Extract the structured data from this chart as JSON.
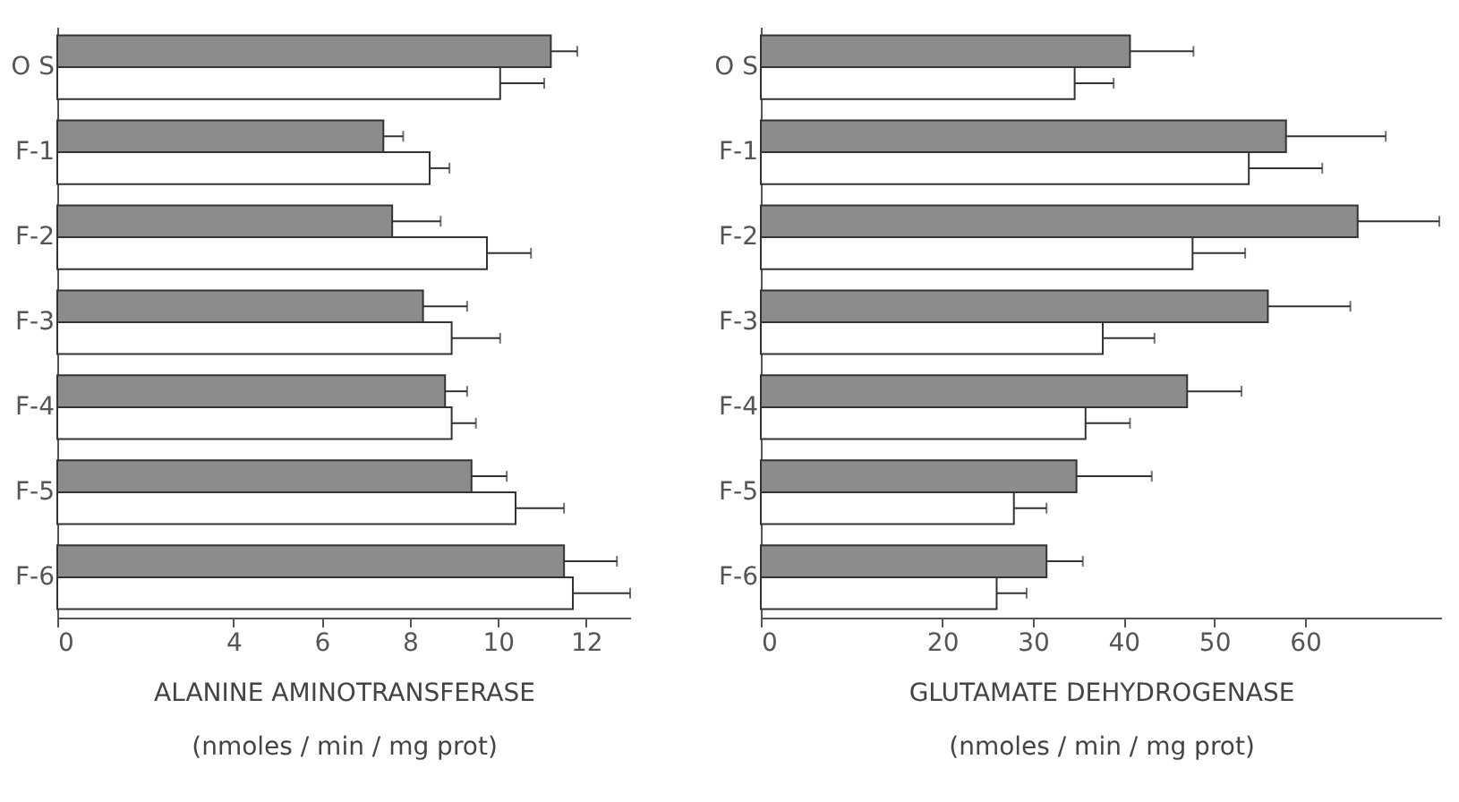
{
  "chart_data": [
    {
      "type": "bar",
      "orientation": "horizontal",
      "categories": [
        "O S",
        "F-1",
        "F-2",
        "F-3",
        "F-4",
        "F-5",
        "F-6"
      ],
      "xlabel": "ALANINE AMINOTRANSFERASE\n(nmoles / min / mg prot)",
      "xlim": [
        0,
        13
      ],
      "xticks": [
        0,
        4,
        6,
        8,
        10,
        12
      ],
      "grid": false,
      "series": [
        {
          "color": "#8c8c8c",
          "values": [
            11.2,
            7.4,
            7.6,
            8.3,
            8.8,
            9.4,
            11.5
          ],
          "errors": [
            [
              11.2,
              11.8
            ],
            [
              7.4,
              7.85
            ],
            [
              7.6,
              8.7
            ],
            [
              8.3,
              9.3
            ],
            [
              8.8,
              9.3
            ],
            [
              9.4,
              10.2
            ],
            [
              11.5,
              12.7
            ]
          ]
        },
        {
          "color": "#ffffff",
          "values": [
            10.05,
            8.45,
            9.75,
            8.95,
            8.95,
            10.4,
            11.7
          ],
          "errors": [
            [
              10.05,
              11.05
            ],
            [
              8.45,
              8.9
            ],
            [
              9.75,
              10.75
            ],
            [
              8.95,
              10.05
            ],
            [
              8.95,
              9.5
            ],
            [
              10.4,
              11.5
            ],
            [
              11.7,
              13
            ]
          ]
        }
      ]
    },
    {
      "type": "bar",
      "orientation": "horizontal",
      "categories": [
        "O S",
        "F-1",
        "F-2",
        "F-3",
        "F-4",
        "F-5",
        "F-6"
      ],
      "xlabel": "GLUTAMATE DEHYDROGENASE\n(nmoles / min / mg prot)",
      "xlim": [
        0,
        75
      ],
      "xticks": [
        0,
        20,
        30,
        40,
        50,
        60
      ],
      "grid": false,
      "series": [
        {
          "color": "#8c8c8c",
          "values": [
            40.7,
            57.9,
            65.8,
            55.9,
            47,
            34.8,
            31.5
          ],
          "errors": [
            [
              40.7,
              47.7
            ],
            [
              57.9,
              68.9
            ],
            [
              65.8,
              74.8
            ],
            [
              55.9,
              65
            ],
            [
              47,
              53
            ],
            [
              34.8,
              43.1
            ],
            [
              31.5,
              35.5
            ]
          ]
        },
        {
          "color": "#ffffff",
          "values": [
            34.6,
            53.8,
            47.6,
            37.7,
            35.8,
            27.9,
            26
          ],
          "errors": [
            [
              34.6,
              38.9
            ],
            [
              53.8,
              61.9
            ],
            [
              47.6,
              53.4
            ],
            [
              37.7,
              43.4
            ],
            [
              35.8,
              40.7
            ],
            [
              27.9,
              31.5
            ],
            [
              26,
              29.3
            ]
          ]
        }
      ]
    }
  ]
}
